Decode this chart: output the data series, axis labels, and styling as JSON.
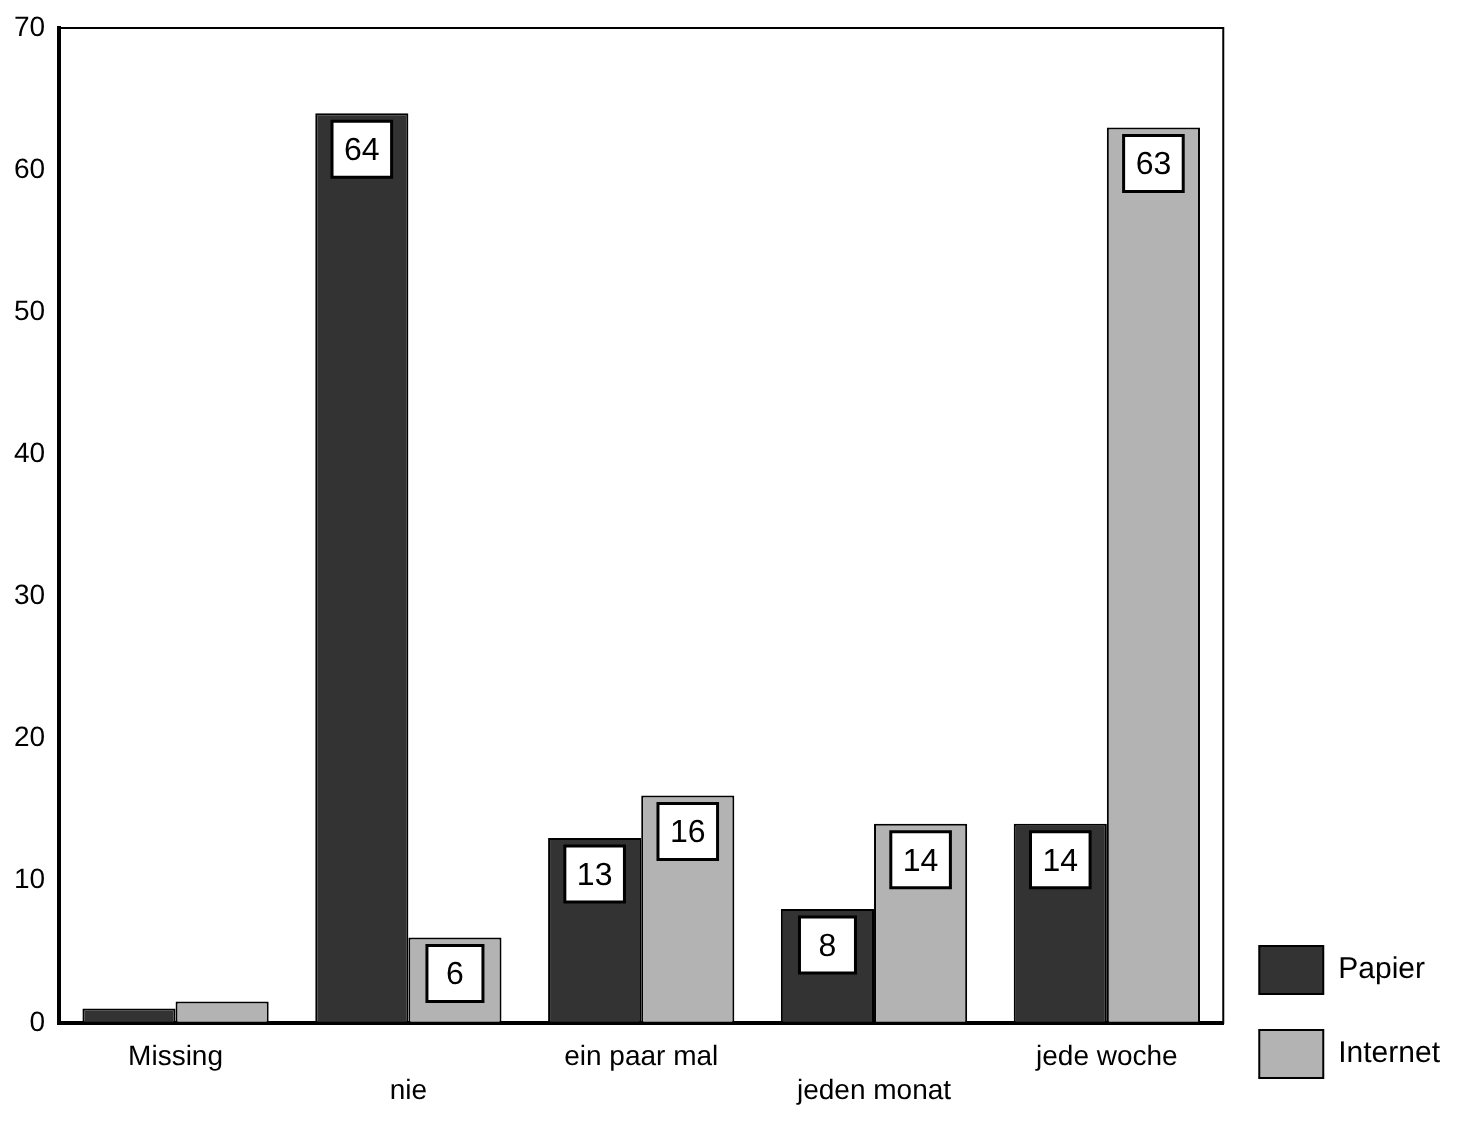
{
  "chart_data": {
    "type": "bar",
    "categories": [
      "Missing",
      "nie",
      "ein paar mal",
      "jeden monat",
      "jede woche"
    ],
    "series": [
      {
        "name": "Papier",
        "color": "#333333",
        "values": [
          1,
          64,
          13,
          8,
          14
        ],
        "value_labels": [
          null,
          "64",
          "13",
          "8",
          "14"
        ]
      },
      {
        "name": "Internet",
        "color": "#b3b3b3",
        "values": [
          1.5,
          6,
          16,
          14,
          63
        ],
        "value_labels": [
          null,
          "6",
          "16",
          "14",
          "63"
        ]
      }
    ],
    "ylim": [
      0,
      70
    ],
    "yticks": [
      0,
      10,
      20,
      30,
      40,
      50,
      60,
      70
    ],
    "grid": false,
    "legend": "bottom right"
  }
}
